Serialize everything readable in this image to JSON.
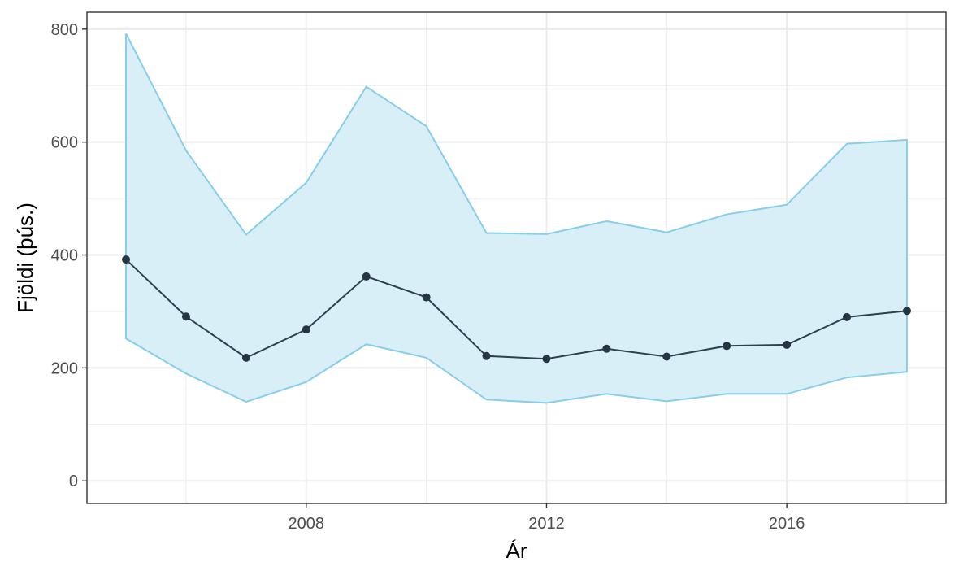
{
  "chart_data": {
    "type": "line",
    "xlabel": "Ár",
    "ylabel": "Fjöldi (þús.)",
    "xlim": [
      2004.35,
      2018.65
    ],
    "ylim": [
      -40,
      830
    ],
    "x_ticks": [
      2008,
      2012,
      2016
    ],
    "x_minor": [
      2006,
      2010,
      2014,
      2018
    ],
    "y_ticks": [
      0,
      200,
      400,
      600,
      800
    ],
    "y_minor": [
      100,
      300,
      500,
      700
    ],
    "grid": true,
    "x": [
      2005,
      2006,
      2007,
      2008,
      2009,
      2010,
      2011,
      2012,
      2013,
      2014,
      2015,
      2016,
      2017,
      2018
    ],
    "series": [
      {
        "values": [
          392,
          291,
          218,
          268,
          362,
          325,
          221,
          216,
          234,
          220,
          239,
          241,
          290,
          301
        ],
        "lower": [
          252,
          190,
          140,
          175,
          242,
          218,
          144,
          138,
          154,
          141,
          154,
          154,
          183,
          193
        ],
        "upper": [
          792,
          585,
          436,
          528,
          698,
          628,
          439,
          437,
          460,
          440,
          472,
          489,
          597,
          604
        ]
      }
    ],
    "colors": {
      "line": "#2e3f4f",
      "point": "#253544",
      "band_fill": "#d9eff8",
      "band_stroke": "#87ceeb",
      "grid": "#ebebeb",
      "axis": "#333333"
    }
  }
}
